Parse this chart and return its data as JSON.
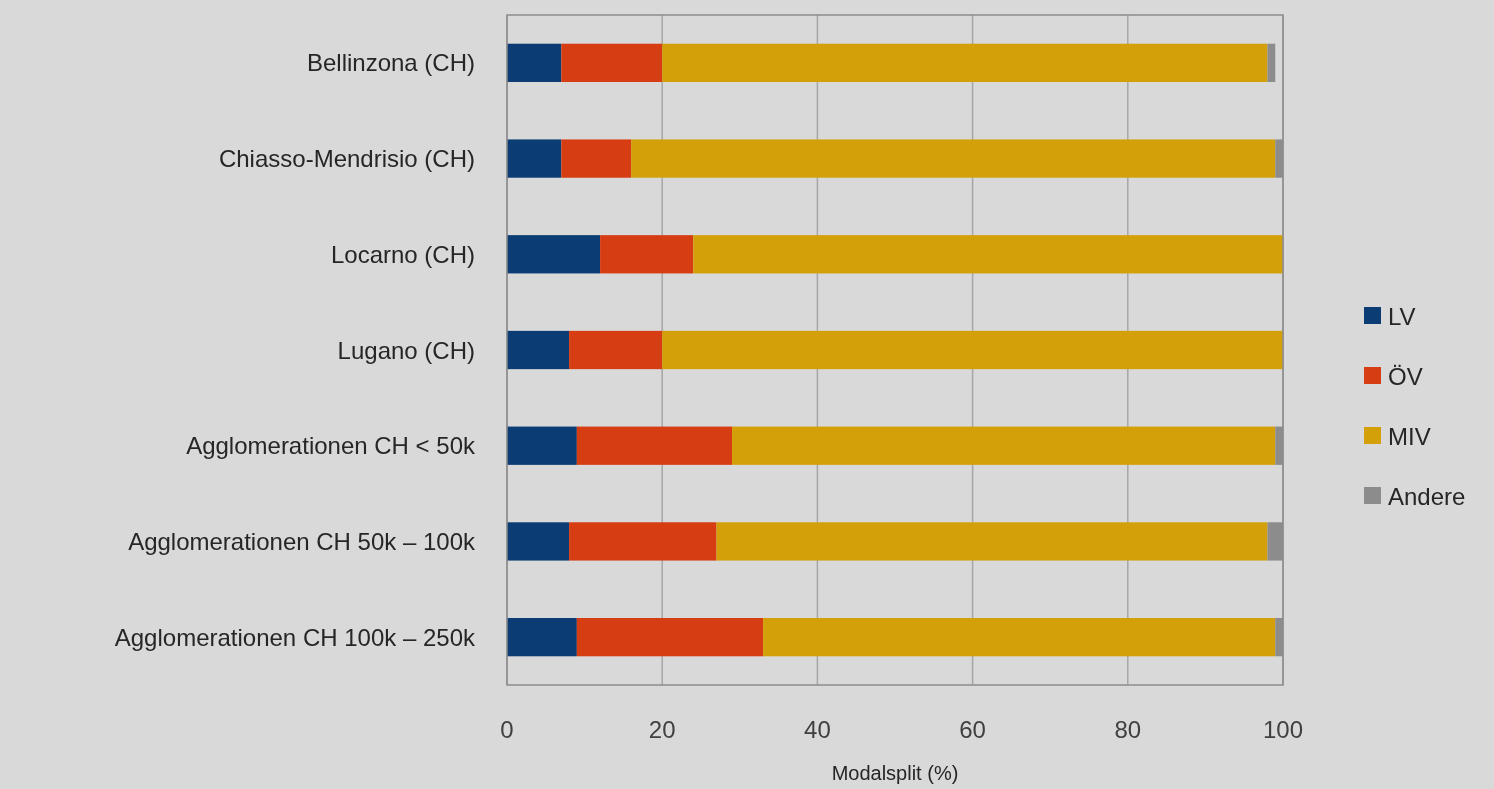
{
  "chart_data": {
    "type": "bar",
    "orientation": "horizontal",
    "stacked": true,
    "xlabel": "Modalsplit (%)",
    "categories": [
      "Bellinzona (CH)",
      "Chiasso-Mendrisio (CH)",
      "Locarno (CH)",
      "Lugano (CH)",
      "Agglomerationen CH < 50k",
      "Agglomerationen CH 50k – 100k",
      "Agglomerationen CH 100k – 250k"
    ],
    "series": [
      {
        "name": "LV",
        "color": "#0b3c73",
        "values": [
          7,
          7,
          12,
          8,
          9,
          8,
          9
        ]
      },
      {
        "name": "ÖV",
        "color": "#d63d12",
        "values": [
          13,
          9,
          12,
          12,
          20,
          19,
          24
        ]
      },
      {
        "name": "MIV",
        "color": "#d4a00a",
        "values": [
          78,
          83,
          76,
          80,
          70,
          71,
          66
        ]
      },
      {
        "name": "Andere",
        "color": "#8c8c8c",
        "values": [
          1,
          1,
          null,
          null,
          1,
          2,
          1
        ]
      }
    ],
    "xlim": [
      0,
      100
    ],
    "xticks": [
      0,
      20,
      40,
      60,
      80,
      100
    ],
    "grid": "x",
    "legend": "right"
  }
}
